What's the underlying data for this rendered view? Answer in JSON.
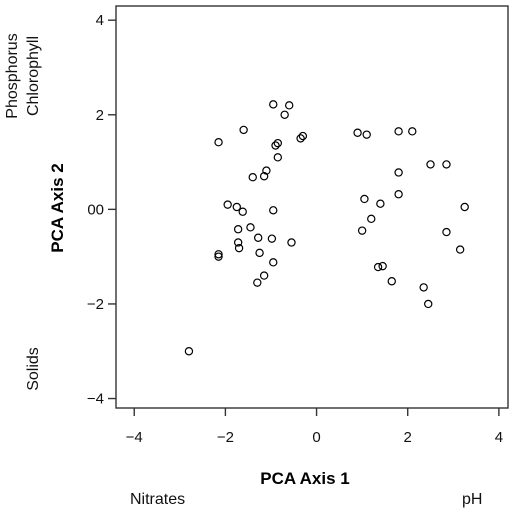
{
  "chart_data": {
    "type": "scatter",
    "xlabel": "PCA Axis 1",
    "ylabel": "PCA Axis 2",
    "xlim": [
      -4.4,
      4.2
    ],
    "ylim": [
      -4.2,
      4.3
    ],
    "x_ticks": [
      -4,
      -2,
      0,
      2,
      4
    ],
    "x_tick_labels": [
      "−4",
      "−2",
      "0",
      "2",
      "4"
    ],
    "y_ticks": [
      4,
      2,
      0,
      -2,
      -4
    ],
    "y_tick_labels": [
      "4",
      "2",
      "00",
      "−2",
      "−4"
    ],
    "grid": false,
    "annotations": {
      "x_left": "Nitrates",
      "x_right": "pH",
      "y_top_line1": "Phosphorus",
      "y_top_line2": "Chlorophyll",
      "y_bottom": "Solids"
    },
    "points": [
      {
        "x": -0.95,
        "y": 2.22
      },
      {
        "x": -0.6,
        "y": 2.2
      },
      {
        "x": -0.7,
        "y": 2.0
      },
      {
        "x": -1.6,
        "y": 1.68
      },
      {
        "x": -2.15,
        "y": 1.42
      },
      {
        "x": -0.85,
        "y": 1.4
      },
      {
        "x": -0.9,
        "y": 1.35
      },
      {
        "x": -0.35,
        "y": 1.5
      },
      {
        "x": -0.3,
        "y": 1.55
      },
      {
        "x": -0.85,
        "y": 1.1
      },
      {
        "x": -1.1,
        "y": 0.82
      },
      {
        "x": -1.4,
        "y": 0.68
      },
      {
        "x": -1.15,
        "y": 0.7
      },
      {
        "x": -1.95,
        "y": 0.1
      },
      {
        "x": -1.75,
        "y": 0.05
      },
      {
        "x": -1.62,
        "y": -0.05
      },
      {
        "x": -0.95,
        "y": -0.02
      },
      {
        "x": -1.45,
        "y": -0.38
      },
      {
        "x": -1.72,
        "y": -0.42
      },
      {
        "x": -1.28,
        "y": -0.6
      },
      {
        "x": -1.72,
        "y": -0.7
      },
      {
        "x": -0.98,
        "y": -0.62
      },
      {
        "x": -1.7,
        "y": -0.82
      },
      {
        "x": -0.55,
        "y": -0.7
      },
      {
        "x": -1.25,
        "y": -0.92
      },
      {
        "x": -2.15,
        "y": -0.95
      },
      {
        "x": -2.15,
        "y": -1.0
      },
      {
        "x": -0.95,
        "y": -1.12
      },
      {
        "x": -1.15,
        "y": -1.4
      },
      {
        "x": -1.3,
        "y": -1.55
      },
      {
        "x": -2.8,
        "y": -3.0
      },
      {
        "x": 0.9,
        "y": 1.62
      },
      {
        "x": 1.1,
        "y": 1.58
      },
      {
        "x": 1.8,
        "y": 1.65
      },
      {
        "x": 2.1,
        "y": 1.65
      },
      {
        "x": 2.5,
        "y": 0.95
      },
      {
        "x": 2.85,
        "y": 0.95
      },
      {
        "x": 1.8,
        "y": 0.78
      },
      {
        "x": 1.8,
        "y": 0.32
      },
      {
        "x": 1.05,
        "y": 0.22
      },
      {
        "x": 1.4,
        "y": 0.12
      },
      {
        "x": 3.25,
        "y": 0.05
      },
      {
        "x": 1.2,
        "y": -0.2
      },
      {
        "x": 1.0,
        "y": -0.45
      },
      {
        "x": 2.85,
        "y": -0.48
      },
      {
        "x": 3.15,
        "y": -0.85
      },
      {
        "x": 1.35,
        "y": -1.22
      },
      {
        "x": 1.45,
        "y": -1.2
      },
      {
        "x": 1.65,
        "y": -1.52
      },
      {
        "x": 2.35,
        "y": -1.65
      },
      {
        "x": 2.45,
        "y": -2.0
      }
    ]
  }
}
